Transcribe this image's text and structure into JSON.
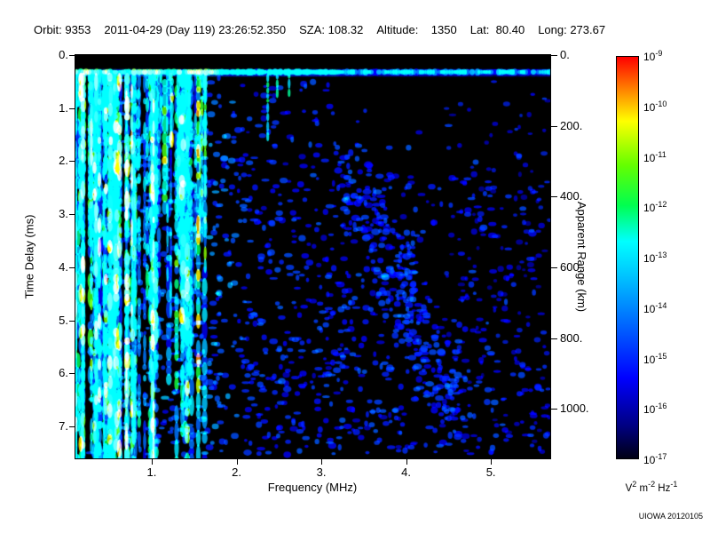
{
  "header": {
    "segments": [
      "Orbit: 9353",
      "2011-04-29 (Day 119) 23:26:52.350",
      "SZA: 108.32",
      "Altitude:    1350",
      "Lat:  80.40",
      "Long: 273.67"
    ]
  },
  "credit": "UIOWA 20120105",
  "colorbar_units_parts": [
    "V",
    "2",
    " m",
    "-2",
    " Hz",
    "-1"
  ],
  "chart_data": {
    "type": "heatmap",
    "title": "",
    "xlabel": "Frequency (MHz)",
    "ylabel_left": "Time Delay (ms)",
    "ylabel_right": "Apparent Range (km)",
    "xlim": [
      0.1,
      5.7
    ],
    "ylim_ms": [
      0,
      7.6
    ],
    "x_ticks": [
      1,
      2,
      3,
      4,
      5
    ],
    "x_tick_labels": [
      "1.",
      "2.",
      "3.",
      "4.",
      "5."
    ],
    "y_ticks_ms": [
      0,
      1,
      2,
      3,
      4,
      5,
      6,
      7
    ],
    "y_tick_labels_ms": [
      "0.",
      "1.",
      "2.",
      "3.",
      "4.",
      "5.",
      "6.",
      "7."
    ],
    "y_ticks_km": [
      0,
      200,
      400,
      600,
      800,
      1000
    ],
    "y_tick_labels_km": [
      "0.",
      "200.",
      "400.",
      "600.",
      "800.",
      "1000."
    ],
    "range_km_per_ms": 150,
    "grid": false,
    "colorbar": {
      "scale": "log",
      "max": 1e-09,
      "min": 1e-17,
      "tick_exponents": [
        -9,
        -10,
        -11,
        -12,
        -13,
        -14,
        -15,
        -16,
        -17
      ],
      "units": "V^2 m^-2 Hz^-1",
      "position": "right"
    },
    "colormap_stops": [
      [
        0.0,
        "#000014"
      ],
      [
        0.08,
        "#000080"
      ],
      [
        0.2,
        "#0000ff"
      ],
      [
        0.33,
        "#0064ff"
      ],
      [
        0.46,
        "#00c8ff"
      ],
      [
        0.54,
        "#00ffff"
      ],
      [
        0.63,
        "#00ff50"
      ],
      [
        0.73,
        "#64ff00"
      ],
      [
        0.84,
        "#ffff00"
      ],
      [
        0.92,
        "#ff8000"
      ],
      [
        1.0,
        "#ff0000"
      ]
    ],
    "features": {
      "surface_band_ms": 0.32,
      "dense_echo_band_mhz": [
        0.1,
        1.7
      ],
      "short_streaks_mhz": [
        2.2,
        2.6
      ],
      "description": "Dense cyan/green vertical ionospheric echo streaks from 0.1 to ~1.7 MHz extending down to ~7.5 ms; bright green-to-cyan horizontal band at ~0.3 ms across all frequencies; scattered faint blue noise blobs elsewhere, sparser at high frequencies, with a loose diagonal cluster near 3.3-4.6 MHz."
    }
  }
}
